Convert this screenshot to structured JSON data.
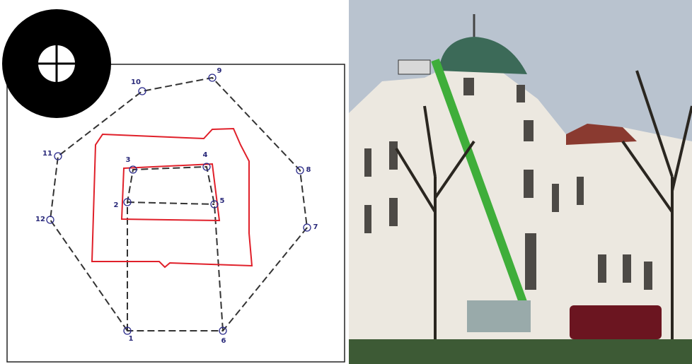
{
  "nodes": [
    {
      "label": "1"
    },
    {
      "label": "2"
    },
    {
      "label": "3"
    },
    {
      "label": "4"
    },
    {
      "label": "5"
    },
    {
      "label": "6"
    },
    {
      "label": "7"
    },
    {
      "label": "8"
    },
    {
      "label": "9"
    },
    {
      "label": "10"
    },
    {
      "label": "11"
    },
    {
      "label": "12"
    }
  ]
}
